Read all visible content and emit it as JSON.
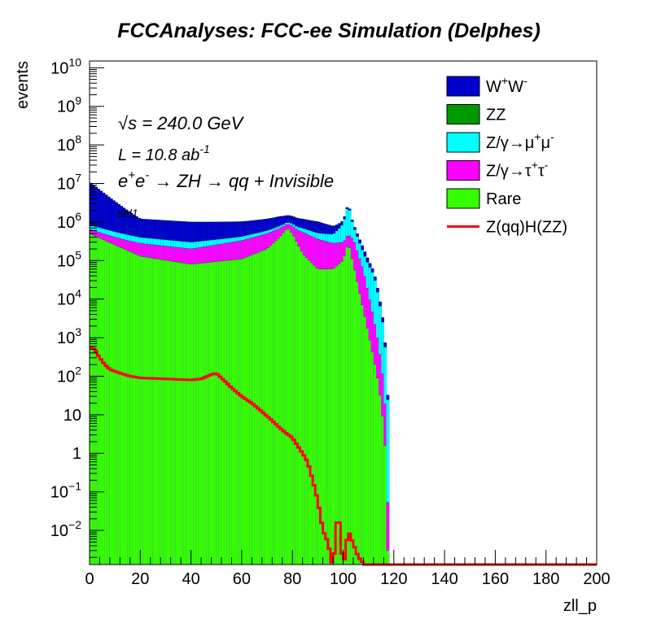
{
  "chart_data": {
    "type": "stacked-histogram",
    "title": "FCCAnalyses: FCC-ee Simulation (Delphes)",
    "xlabel": "zll_p",
    "ylabel": "events",
    "xlim": [
      0,
      200
    ],
    "ylim": [
      0.0013,
      15000000000
    ],
    "yscale": "log",
    "xticks": [
      "0",
      "20",
      "40",
      "60",
      "80",
      "100",
      "120",
      "140",
      "160",
      "180",
      "200"
    ],
    "yticks": [
      {
        "v": 0.01,
        "b": "10",
        "e": "−2"
      },
      {
        "v": 0.1,
        "b": "10",
        "e": "−1"
      },
      {
        "v": 1,
        "b": "1",
        "e": ""
      },
      {
        "v": 10,
        "b": "10",
        "e": ""
      },
      {
        "v": 100,
        "b": "10",
        "e": "2"
      },
      {
        "v": 1000,
        "b": "10",
        "e": "3"
      },
      {
        "v": 10000,
        "b": "10",
        "e": "4"
      },
      {
        "v": 100000,
        "b": "10",
        "e": "5"
      },
      {
        "v": 1000000,
        "b": "10",
        "e": "6"
      },
      {
        "v": 10000000,
        "b": "10",
        "e": "7"
      },
      {
        "v": 100000000,
        "b": "10",
        "e": "8"
      },
      {
        "v": 1000000000,
        "b": "10",
        "e": "9"
      },
      {
        "v": 10000000000,
        "b": "10",
        "e": "10"
      }
    ],
    "annotations": {
      "sqrts_sym": "√s",
      "sqrts": " = 240.0 GeV",
      "lumi_pre": "L = 10.8 ab",
      "lumi_exp": "-1",
      "process_e1": "e",
      "process_sup1": "+",
      "process_e2": "e",
      "process_sup2": "-",
      "process_rest": " → ZH → qq + Invisible",
      "selection": "sel1"
    },
    "stack_series": [
      {
        "key": "rare",
        "color": "#33ff00",
        "x": [
          0,
          20,
          40,
          60,
          70,
          75,
          78,
          80,
          84,
          90,
          96,
          100,
          102,
          104,
          108,
          112,
          114,
          116,
          117,
          117.5
        ],
        "values": [
          500000.0,
          130000.0,
          80000.0,
          110000.0,
          200000.0,
          400000.0,
          700000.0,
          500000.0,
          150000.0,
          60000.0,
          60000.0,
          100000.0,
          300000.0,
          80000.0,
          5000.0,
          300,
          60,
          5,
          0.5,
          0.003
        ]
      },
      {
        "key": "tautau",
        "color": "#ff00ff",
        "x": [
          0,
          20,
          40,
          60,
          70,
          75,
          78,
          80,
          84,
          90,
          96,
          100,
          102,
          104,
          108,
          112,
          114,
          116,
          117,
          117.5
        ],
        "values": [
          150000.0,
          150000.0,
          120000.0,
          220000.0,
          300000.0,
          300000.0,
          200000.0,
          300000.0,
          400000.0,
          300000.0,
          220000.0,
          200000.0,
          200000.0,
          300000.0,
          50000.0,
          3000,
          600,
          60,
          5,
          0.05
        ]
      },
      {
        "key": "mumu",
        "color": "#00ffff",
        "x": [
          0,
          20,
          40,
          60,
          70,
          75,
          78,
          80,
          84,
          90,
          96,
          100,
          102,
          104,
          108,
          112,
          114,
          116,
          117,
          118
        ],
        "values": [
          200000.0,
          120000.0,
          100000.0,
          90000.0,
          100000.0,
          100000.0,
          100000.0,
          120000.0,
          150000.0,
          160000.0,
          200000.0,
          600000.0,
          2500000.0,
          400000.0,
          100000.0,
          40000.0,
          10000.0,
          1500,
          200,
          3
        ]
      },
      {
        "key": "ww",
        "color": "#0000cc",
        "x": [
          0,
          20,
          40,
          60,
          70,
          75,
          78,
          80,
          84,
          90,
          96,
          100,
          102,
          104,
          108,
          112,
          114,
          116,
          117,
          118
        ],
        "values": [
          10000000.0,
          800000.0,
          700000.0,
          600000.0,
          600000.0,
          600000.0,
          500000.0,
          500000.0,
          500000.0,
          500000.0,
          300000.0,
          200000.0,
          200000.0,
          100000.0,
          50000.0,
          10000.0,
          3000,
          500,
          60,
          1
        ]
      },
      {
        "key": "zz",
        "color": "#009900",
        "x": [
          0,
          20,
          40,
          60,
          80,
          100,
          110,
          115,
          118
        ],
        "values": [
          0.002,
          0.002,
          0.002,
          0.002,
          0.002,
          0.002,
          0.002,
          0.002,
          0.001
        ]
      }
    ],
    "signal": {
      "key": "zhzz",
      "color": "#ff0000",
      "x": [
        0,
        2,
        4,
        6,
        8,
        12,
        16,
        20,
        30,
        40,
        44,
        48,
        50,
        52,
        56,
        60,
        64,
        68,
        72,
        76,
        80,
        84,
        86,
        88,
        90,
        92,
        94,
        96,
        98,
        100,
        102,
        106,
        110,
        116,
        120,
        160,
        200
      ],
      "values": [
        600,
        500,
        300,
        200,
        150,
        120,
        100,
        90,
        85,
        80,
        85,
        110,
        120,
        90,
        50,
        30,
        20,
        12,
        7,
        4,
        2.5,
        1,
        0.6,
        0.2,
        0.06,
        0.01,
        0.005,
        0.001,
        0.04,
        0.001,
        0.01,
        0.002,
        0.001,
        0.001,
        0.001,
        0.001,
        0.001
      ]
    },
    "legend": {
      "placement": "top-right",
      "entries": [
        {
          "key": "ww",
          "color": "#0000cc",
          "kind": "box",
          "base": "W",
          "sup1": "+",
          "mid": "W",
          "sup2": "-"
        },
        {
          "key": "zz",
          "color": "#009900",
          "kind": "box",
          "base": "ZZ"
        },
        {
          "key": "mumu",
          "color": "#00ffff",
          "kind": "box",
          "base": "Z/γ→μ",
          "sup1": "+",
          "mid": "μ",
          "sup2": "-"
        },
        {
          "key": "tautau",
          "color": "#ff00ff",
          "kind": "box",
          "base": "Z/γ→τ",
          "sup1": "+",
          "mid": "τ",
          "sup2": "-"
        },
        {
          "key": "rare",
          "color": "#33ff00",
          "kind": "box",
          "base": "Rare"
        },
        {
          "key": "zhzz",
          "color": "#ff0000",
          "kind": "line",
          "base": "Z(qq)H(ZZ)"
        }
      ]
    },
    "grid": false
  }
}
